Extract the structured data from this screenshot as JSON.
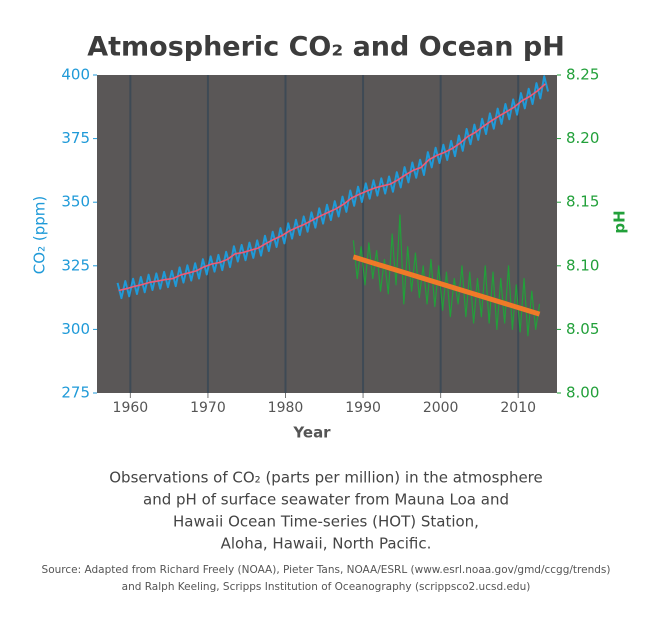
{
  "chart_data": {
    "type": "line",
    "title": "Atmospheric CO₂ and Ocean pH",
    "xlabel": "Year",
    "ylabel": "CO₂ (ppm)",
    "y2label": "pH",
    "xlim": [
      1955.7,
      2015
    ],
    "xticks": [
      1960,
      1970,
      1980,
      1990,
      2000,
      2010
    ],
    "ylim": [
      275,
      400
    ],
    "yticks": [
      275,
      300,
      325,
      350,
      375,
      400
    ],
    "y2lim": [
      8,
      8.25
    ],
    "y2ticks": [
      {
        "value": 8,
        "label": "8.00"
      },
      8.05,
      {
        "value": 8.1,
        "label": "8.10"
      },
      8.15,
      {
        "value": 8.2,
        "label": "8.20"
      },
      8.25
    ],
    "grid": true,
    "background": "#5a5757",
    "series": [
      {
        "color": "#1f9ad8",
        "axis": "y",
        "x": [
          1958.35,
          1958.85,
          1959.35,
          1959.85,
          1960.35,
          1960.85,
          1961.35,
          1961.85,
          1962.35,
          1962.85,
          1963.35,
          1963.85,
          1964.35,
          1964.85,
          1965.35,
          1965.85,
          1966.35,
          1966.85,
          1967.35,
          1967.85,
          1968.35,
          1968.85,
          1969.35,
          1969.85,
          1970.35,
          1970.85,
          1971.35,
          1971.85,
          1972.35,
          1972.85,
          1973.35,
          1973.85,
          1974.35,
          1974.85,
          1975.35,
          1975.85,
          1976.35,
          1976.85,
          1977.35,
          1977.85,
          1978.35,
          1978.85,
          1979.35,
          1979.85,
          1980.35,
          1980.85,
          1981.35,
          1981.85,
          1982.35,
          1982.85,
          1983.35,
          1983.85,
          1984.35,
          1984.85,
          1985.35,
          1985.85,
          1986.35,
          1986.85,
          1987.35,
          1987.85,
          1988.35,
          1988.85,
          1989.35,
          1989.85,
          1990.35,
          1990.85,
          1991.35,
          1991.85,
          1992.35,
          1992.85,
          1993.35,
          1993.85,
          1994.35,
          1994.85,
          1995.35,
          1995.85,
          1996.35,
          1996.85,
          1997.35,
          1997.85,
          1998.35,
          1998.85,
          1999.35,
          1999.85,
          2000.35,
          2000.85,
          2001.35,
          2001.85,
          2002.35,
          2002.85,
          2003.35,
          2003.85,
          2004.35,
          2004.85,
          2005.35,
          2005.85,
          2006.35,
          2006.85,
          2007.35,
          2007.85,
          2008.35,
          2008.85,
          2009.35,
          2009.85,
          2010.35,
          2010.85,
          2011.35,
          2011.85,
          2012.35,
          2012.85,
          2013.35,
          2013.85
        ],
        "values": [
          318.3,
          312.3,
          319.0,
          313.0,
          319.9,
          313.9,
          320.6,
          314.6,
          321.5,
          315.5,
          322.0,
          316.0,
          322.6,
          316.6,
          323.0,
          317.0,
          324.4,
          318.4,
          325.2,
          319.2,
          326.0,
          320.0,
          327.6,
          321.6,
          328.7,
          322.7,
          329.3,
          323.3,
          330.5,
          324.5,
          332.7,
          326.7,
          333.2,
          327.2,
          334.1,
          328.1,
          335.0,
          329.0,
          336.8,
          330.8,
          338.4,
          332.4,
          339.8,
          333.8,
          341.7,
          335.7,
          343.1,
          337.1,
          344.4,
          338.4,
          346.0,
          340.0,
          347.6,
          341.6,
          349.0,
          343.0,
          350.4,
          344.4,
          352.2,
          346.2,
          354.6,
          348.6,
          356.1,
          350.1,
          357.4,
          351.4,
          358.6,
          352.6,
          359.4,
          353.4,
          360.1,
          354.1,
          361.8,
          355.8,
          363.8,
          357.8,
          365.6,
          359.6,
          366.7,
          360.7,
          369.7,
          363.7,
          371.4,
          365.4,
          372.6,
          366.6,
          374.1,
          368.1,
          376.2,
          370.2,
          378.8,
          372.8,
          380.5,
          374.5,
          382.8,
          376.8,
          384.9,
          378.9,
          386.8,
          380.8,
          388.6,
          382.6,
          390.4,
          384.4,
          392.9,
          386.9,
          394.6,
          388.6,
          396.8,
          390.8,
          399.5,
          393.5
        ]
      },
      {
        "color": "#ee5a78",
        "axis": "y",
        "x": [
          1958.5,
          1959.5,
          1960.5,
          1961.5,
          1962.5,
          1963.5,
          1964.5,
          1965.5,
          1966.5,
          1967.5,
          1968.5,
          1969.5,
          1970.5,
          1971.5,
          1972.5,
          1973.5,
          1974.5,
          1975.5,
          1976.5,
          1977.5,
          1978.5,
          1979.5,
          1980.5,
          1981.5,
          1982.5,
          1983.5,
          1984.5,
          1985.5,
          1986.5,
          1987.5,
          1988.5,
          1989.5,
          1990.5,
          1991.5,
          1992.5,
          1993.5,
          1994.5,
          1995.5,
          1996.5,
          1997.5,
          1998.5,
          1999.5,
          2000.5,
          2001.5,
          2002.5,
          2003.5,
          2004.5,
          2005.5,
          2006.5,
          2007.5,
          2008.5,
          2009.5,
          2010.5,
          2011.5,
          2012.5,
          2013.5
        ],
        "values": [
          315.3,
          316.0,
          316.9,
          317.6,
          318.5,
          319.0,
          319.6,
          320.0,
          321.4,
          322.2,
          323.0,
          324.6,
          325.7,
          326.3,
          327.5,
          329.7,
          330.2,
          331.1,
          332.0,
          333.8,
          335.4,
          336.8,
          338.7,
          340.1,
          341.4,
          343.0,
          344.6,
          346.0,
          347.4,
          349.2,
          351.6,
          353.1,
          354.4,
          355.6,
          356.4,
          357.1,
          358.8,
          360.8,
          362.6,
          363.7,
          366.7,
          368.4,
          369.6,
          371.1,
          373.2,
          375.8,
          377.5,
          379.8,
          381.9,
          383.8,
          385.6,
          387.4,
          389.9,
          391.6,
          393.8,
          396.5
        ]
      },
      {
        "color": "#22a03a",
        "axis": "y2",
        "x": [
          1988.75,
          1989.25,
          1989.75,
          1990.25,
          1990.75,
          1991.25,
          1991.75,
          1992.25,
          1992.75,
          1993.25,
          1993.75,
          1994.25,
          1994.75,
          1995.25,
          1995.75,
          1996.25,
          1996.75,
          1997.25,
          1997.75,
          1998.25,
          1998.75,
          1999.25,
          1999.75,
          2000.25,
          2000.75,
          2001.25,
          2001.75,
          2002.25,
          2002.75,
          2003.25,
          2003.75,
          2004.25,
          2004.75,
          2005.25,
          2005.75,
          2006.25,
          2006.75,
          2007.25,
          2007.75,
          2008.25,
          2008.75,
          2009.25,
          2009.75,
          2010.25,
          2010.75,
          2011.25,
          2011.75,
          2012.25,
          2012.75
        ],
        "values": [
          8.12,
          8.09,
          8.115,
          8.085,
          8.118,
          8.09,
          8.112,
          8.08,
          8.105,
          8.078,
          8.125,
          8.085,
          8.14,
          8.07,
          8.115,
          8.08,
          8.11,
          8.075,
          8.1,
          8.07,
          8.105,
          8.068,
          8.1,
          8.065,
          8.095,
          8.06,
          8.09,
          8.07,
          8.1,
          8.06,
          8.095,
          8.055,
          8.09,
          8.06,
          8.1,
          8.055,
          8.095,
          8.05,
          8.09,
          8.055,
          8.1,
          8.05,
          8.085,
          8.048,
          8.09,
          8.045,
          8.08,
          8.05,
          8.07
        ]
      },
      {
        "color": "#f07a28",
        "axis": "y2",
        "x": [
          1988.75,
          2012.75
        ],
        "values": [
          8.107,
          8.062
        ]
      }
    ],
    "caption": [
      "Observations of CO₂ (parts per million) in the atmosphere",
      "and pH of surface seawater from Mauna Loa and",
      "Hawaii Ocean Time-series (HOT) Station,",
      "Aloha, Hawaii, North Pacific."
    ],
    "source": [
      "Source: Adapted from Richard Freely (NOAA), Pieter Tans, NOAA/ESRL (www.esrl.noaa.gov/gmd/ccgg/trends)",
      "and Ralph Keeling, Scripps Institution of Oceanography (scrippsco2.ucsd.edu)"
    ]
  }
}
